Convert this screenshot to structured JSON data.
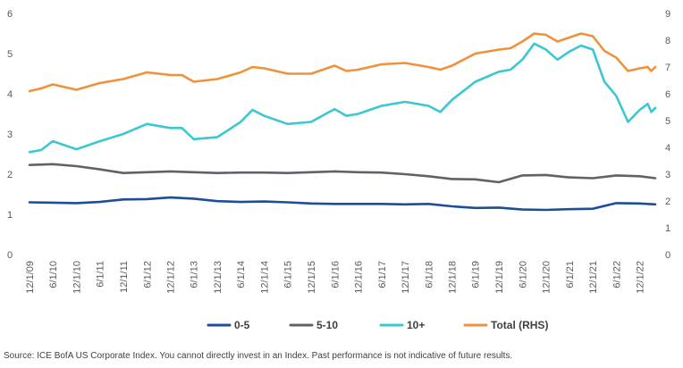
{
  "chart_data": {
    "type": "line",
    "title": "",
    "xlabel": "",
    "ylabel": "",
    "ylim": [
      0,
      6
    ],
    "y2lim": [
      0,
      9
    ],
    "yticks": [
      "0",
      "1",
      "2",
      "3",
      "4",
      "5",
      "6"
    ],
    "y2ticks": [
      "0",
      "1",
      "2",
      "3",
      "4",
      "5",
      "6",
      "7",
      "8",
      "9"
    ],
    "xticks": [
      "12/1/09",
      "6/1/10",
      "12/1/10",
      "6/1/11",
      "12/1/11",
      "6/1/12",
      "12/1/12",
      "6/1/13",
      "12/1/13",
      "6/1/14",
      "12/1/14",
      "6/1/15",
      "12/1/15",
      "6/1/16",
      "12/1/16",
      "6/1/17",
      "12/1/17",
      "6/1/18",
      "12/1/18",
      "6/1/19",
      "12/1/19",
      "6/1/20",
      "12/1/20",
      "6/1/21",
      "12/1/21",
      "6/1/22",
      "12/1/22"
    ],
    "x_range": [
      "12/1/09",
      "4/1/23"
    ],
    "grid": false,
    "legend_position": "bottom",
    "series": [
      {
        "name": "0-5",
        "axis": "left",
        "color": "#1f4e99",
        "points": [
          [
            "12/1/09",
            1.3
          ],
          [
            "6/1/10",
            1.29
          ],
          [
            "12/1/10",
            1.28
          ],
          [
            "6/1/11",
            1.31
          ],
          [
            "12/1/11",
            1.37
          ],
          [
            "6/1/12",
            1.38
          ],
          [
            "12/1/12",
            1.42
          ],
          [
            "6/1/13",
            1.39
          ],
          [
            "12/1/13",
            1.33
          ],
          [
            "6/1/14",
            1.31
          ],
          [
            "12/1/14",
            1.32
          ],
          [
            "6/1/15",
            1.3
          ],
          [
            "12/1/15",
            1.27
          ],
          [
            "6/1/16",
            1.26
          ],
          [
            "12/1/16",
            1.26
          ],
          [
            "6/1/17",
            1.26
          ],
          [
            "12/1/17",
            1.25
          ],
          [
            "6/1/18",
            1.26
          ],
          [
            "12/1/18",
            1.2
          ],
          [
            "6/1/19",
            1.16
          ],
          [
            "12/1/19",
            1.17
          ],
          [
            "6/1/20",
            1.12
          ],
          [
            "12/1/20",
            1.11
          ],
          [
            "6/1/21",
            1.13
          ],
          [
            "12/1/21",
            1.14
          ],
          [
            "6/1/22",
            1.28
          ],
          [
            "12/1/22",
            1.27
          ],
          [
            "4/1/23",
            1.25
          ]
        ]
      },
      {
        "name": "5-10",
        "axis": "left",
        "color": "#5f6368",
        "points": [
          [
            "12/1/09",
            2.23
          ],
          [
            "6/1/10",
            2.25
          ],
          [
            "12/1/10",
            2.2
          ],
          [
            "6/1/11",
            2.12
          ],
          [
            "12/1/11",
            2.03
          ],
          [
            "6/1/12",
            2.05
          ],
          [
            "12/1/12",
            2.07
          ],
          [
            "6/1/13",
            2.05
          ],
          [
            "12/1/13",
            2.03
          ],
          [
            "6/1/14",
            2.04
          ],
          [
            "12/1/14",
            2.04
          ],
          [
            "6/1/15",
            2.03
          ],
          [
            "12/1/15",
            2.05
          ],
          [
            "6/1/16",
            2.07
          ],
          [
            "12/1/16",
            2.05
          ],
          [
            "6/1/17",
            2.04
          ],
          [
            "12/1/17",
            2.0
          ],
          [
            "6/1/18",
            1.95
          ],
          [
            "12/1/18",
            1.88
          ],
          [
            "6/1/19",
            1.87
          ],
          [
            "12/1/19",
            1.8
          ],
          [
            "6/1/20",
            1.97
          ],
          [
            "12/1/20",
            1.98
          ],
          [
            "6/1/21",
            1.92
          ],
          [
            "12/1/21",
            1.9
          ],
          [
            "6/1/22",
            1.97
          ],
          [
            "12/1/22",
            1.95
          ],
          [
            "4/1/23",
            1.9
          ]
        ]
      },
      {
        "name": "10+",
        "axis": "left",
        "color": "#3cc8d2",
        "points": [
          [
            "12/1/09",
            2.55
          ],
          [
            "3/1/10",
            2.6
          ],
          [
            "6/1/10",
            2.82
          ],
          [
            "9/1/10",
            2.72
          ],
          [
            "12/1/10",
            2.62
          ],
          [
            "6/1/11",
            2.82
          ],
          [
            "12/1/11",
            3.0
          ],
          [
            "6/1/12",
            3.25
          ],
          [
            "12/1/12",
            3.15
          ],
          [
            "3/1/13",
            3.15
          ],
          [
            "6/1/13",
            2.87
          ],
          [
            "12/1/13",
            2.92
          ],
          [
            "6/1/14",
            3.3
          ],
          [
            "9/1/14",
            3.6
          ],
          [
            "12/1/14",
            3.45
          ],
          [
            "6/1/15",
            3.25
          ],
          [
            "12/1/15",
            3.3
          ],
          [
            "6/1/16",
            3.62
          ],
          [
            "9/1/16",
            3.45
          ],
          [
            "12/1/16",
            3.5
          ],
          [
            "6/1/17",
            3.7
          ],
          [
            "12/1/17",
            3.8
          ],
          [
            "6/1/18",
            3.7
          ],
          [
            "9/1/18",
            3.55
          ],
          [
            "12/1/18",
            3.85
          ],
          [
            "6/1/19",
            4.3
          ],
          [
            "12/1/19",
            4.55
          ],
          [
            "3/1/20",
            4.6
          ],
          [
            "6/1/20",
            4.85
          ],
          [
            "9/1/20",
            5.25
          ],
          [
            "12/1/20",
            5.1
          ],
          [
            "3/1/21",
            4.85
          ],
          [
            "6/1/21",
            5.05
          ],
          [
            "9/1/21",
            5.2
          ],
          [
            "12/1/21",
            5.1
          ],
          [
            "3/1/22",
            4.3
          ],
          [
            "6/1/22",
            3.95
          ],
          [
            "9/1/22",
            3.3
          ],
          [
            "12/1/22",
            3.6
          ],
          [
            "2/1/23",
            3.75
          ],
          [
            "3/1/23",
            3.55
          ],
          [
            "4/1/23",
            3.65
          ]
        ]
      },
      {
        "name": "Total (RHS)",
        "axis": "right",
        "color": "#f0923c",
        "points": [
          [
            "12/1/09",
            6.1
          ],
          [
            "3/1/10",
            6.2
          ],
          [
            "6/1/10",
            6.35
          ],
          [
            "9/1/10",
            6.25
          ],
          [
            "12/1/10",
            6.15
          ],
          [
            "6/1/11",
            6.4
          ],
          [
            "12/1/11",
            6.55
          ],
          [
            "6/1/12",
            6.8
          ],
          [
            "12/1/12",
            6.7
          ],
          [
            "3/1/13",
            6.7
          ],
          [
            "6/1/13",
            6.45
          ],
          [
            "12/1/13",
            6.55
          ],
          [
            "6/1/14",
            6.8
          ],
          [
            "9/1/14",
            7.0
          ],
          [
            "12/1/14",
            6.95
          ],
          [
            "6/1/15",
            6.75
          ],
          [
            "12/1/15",
            6.75
          ],
          [
            "6/1/16",
            7.05
          ],
          [
            "9/1/16",
            6.85
          ],
          [
            "12/1/16",
            6.9
          ],
          [
            "6/1/17",
            7.1
          ],
          [
            "12/1/17",
            7.15
          ],
          [
            "6/1/18",
            7.0
          ],
          [
            "9/1/18",
            6.9
          ],
          [
            "12/1/18",
            7.05
          ],
          [
            "6/1/19",
            7.5
          ],
          [
            "12/1/19",
            7.65
          ],
          [
            "3/1/20",
            7.7
          ],
          [
            "6/1/20",
            7.95
          ],
          [
            "9/1/20",
            8.25
          ],
          [
            "12/1/20",
            8.2
          ],
          [
            "3/1/21",
            7.95
          ],
          [
            "6/1/21",
            8.1
          ],
          [
            "9/1/21",
            8.25
          ],
          [
            "12/1/21",
            8.15
          ],
          [
            "3/1/22",
            7.6
          ],
          [
            "6/1/22",
            7.35
          ],
          [
            "9/1/22",
            6.85
          ],
          [
            "12/1/22",
            6.95
          ],
          [
            "2/1/23",
            7.0
          ],
          [
            "3/1/23",
            6.85
          ],
          [
            "4/1/23",
            7.0
          ]
        ]
      }
    ]
  },
  "footnote": "Source: ICE BofA US Corporate Index. You cannot directly invest in an Index. Past performance is not indicative of future results."
}
